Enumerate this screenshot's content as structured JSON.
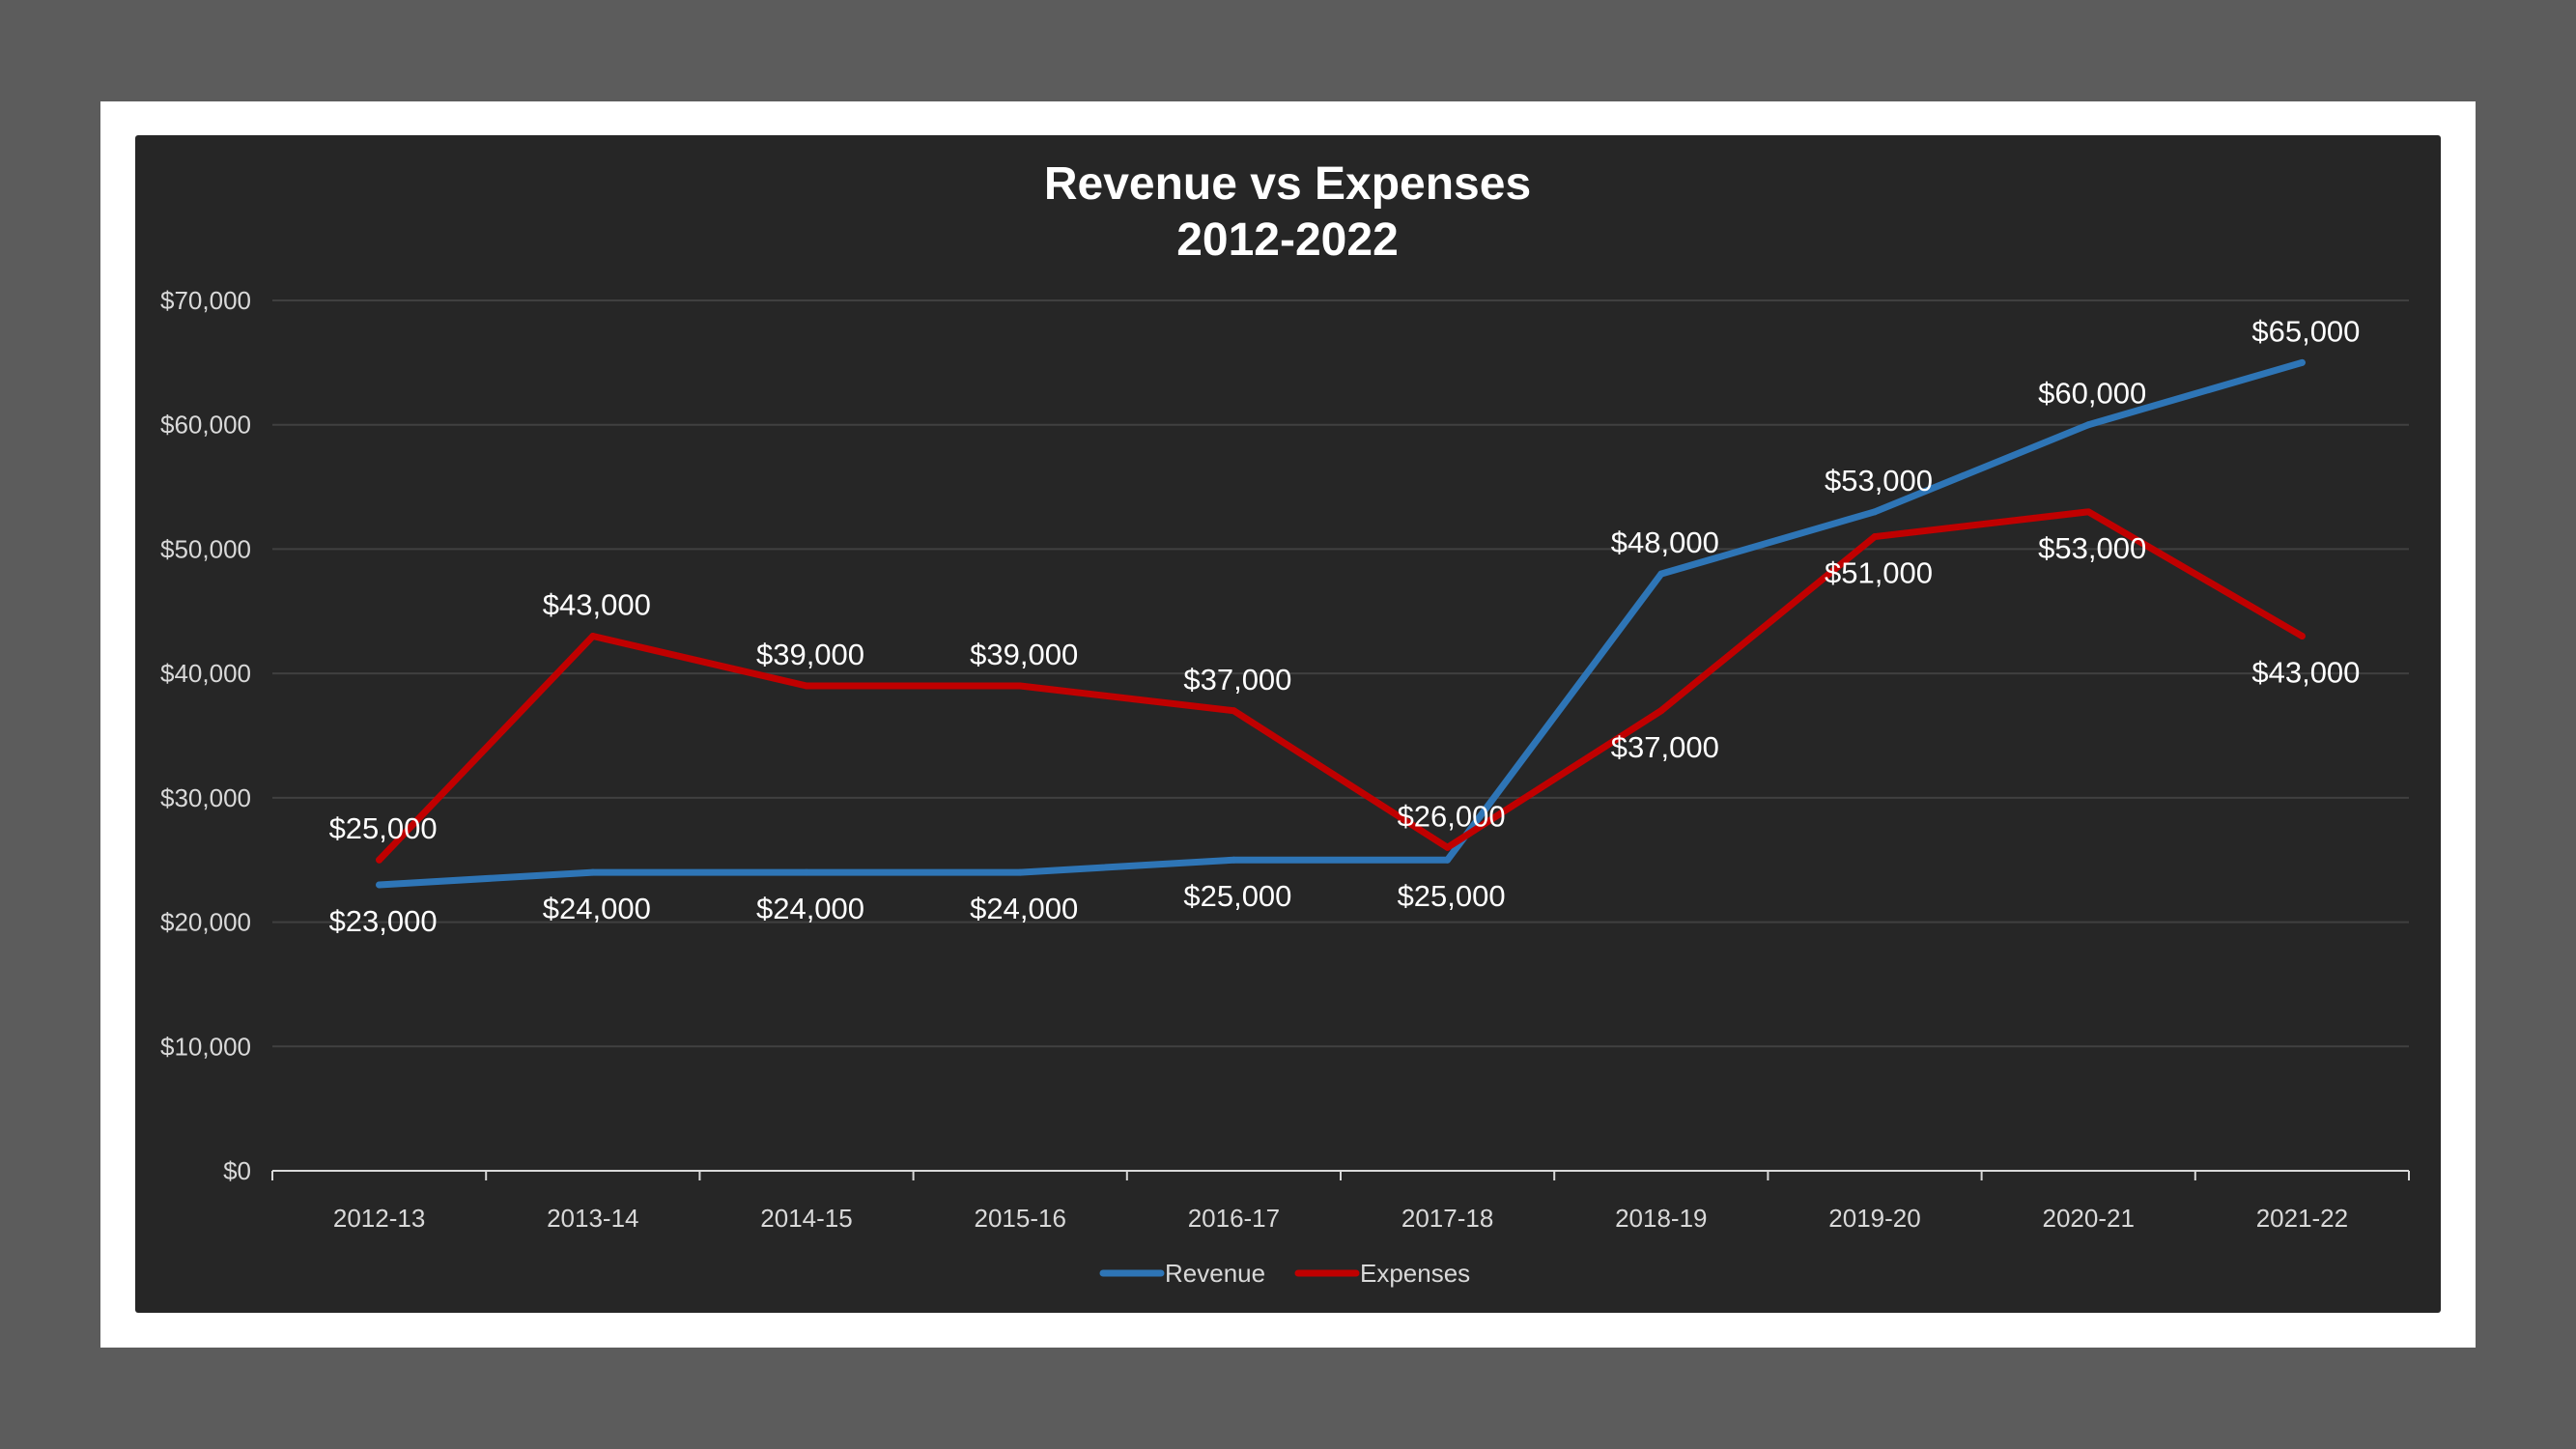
{
  "chart_data": {
    "type": "line",
    "title": [
      "Revenue vs Expenses",
      "2012-2022"
    ],
    "xlabel": "",
    "ylabel": "",
    "categories": [
      "2012-13",
      "2013-14",
      "2014-15",
      "2015-16",
      "2016-17",
      "2017-18",
      "2018-19",
      "2019-20",
      "2020-21",
      "2021-22"
    ],
    "ylim": [
      0,
      70000
    ],
    "y_ticks": [
      0,
      10000,
      20000,
      30000,
      40000,
      50000,
      60000,
      70000
    ],
    "y_tick_labels": [
      "$0",
      "$10,000",
      "$20,000",
      "$30,000",
      "$40,000",
      "$50,000",
      "$60,000",
      "$70,000"
    ],
    "grid": true,
    "legend_position": "bottom",
    "series": [
      {
        "name": "Revenue",
        "color": "#2e75b6",
        "values": [
          23000,
          24000,
          24000,
          24000,
          25000,
          25000,
          48000,
          53000,
          60000,
          65000
        ],
        "labels": [
          "$23,000",
          "$24,000",
          "$24,000",
          "$24,000",
          "$25,000",
          "$25,000",
          "$48,000",
          "$53,000",
          "$60,000",
          "$65,000"
        ],
        "label_positions": [
          "below",
          "below",
          "below",
          "below",
          "below",
          "below",
          "above",
          "above",
          "above",
          "above"
        ]
      },
      {
        "name": "Expenses",
        "color": "#c00000",
        "values": [
          25000,
          43000,
          39000,
          39000,
          37000,
          26000,
          37000,
          51000,
          53000,
          43000
        ],
        "labels": [
          "$25,000",
          "$43,000",
          "$39,000",
          "$39,000",
          "$37,000",
          "$26,000",
          "$37,000",
          "$51,000",
          "$53,000",
          "$43,000"
        ],
        "label_positions": [
          "above",
          "above",
          "above",
          "above",
          "above",
          "above",
          "below",
          "below",
          "below",
          "below"
        ]
      }
    ]
  },
  "colors": {
    "page_background": "#5c5c5c",
    "frame": "#ffffff",
    "plot_background": "#262626",
    "gridline": "#404040",
    "axis": "#d9d9d9"
  }
}
